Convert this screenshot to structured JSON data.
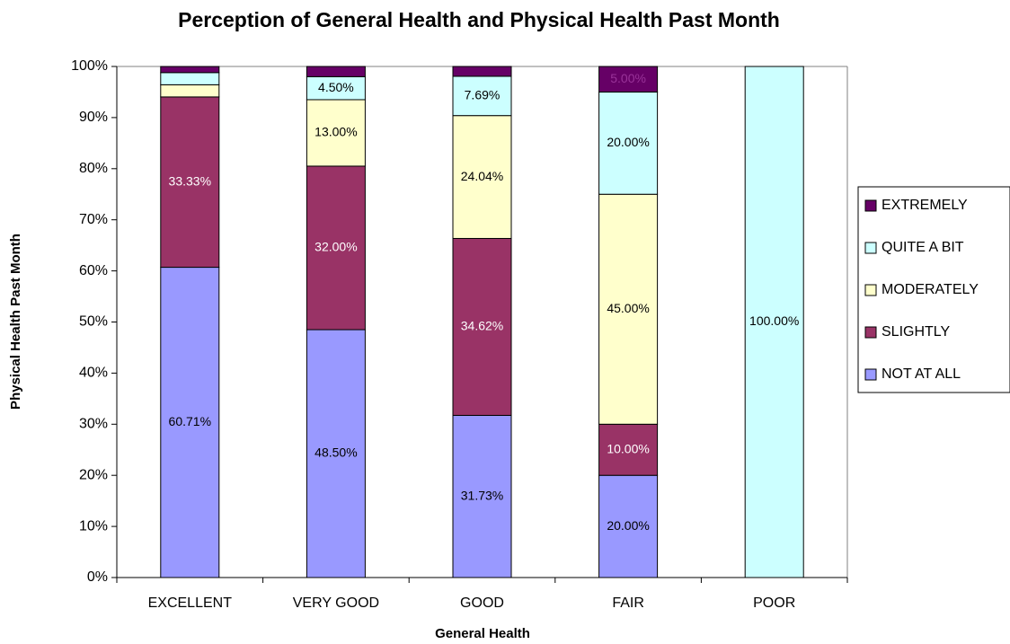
{
  "chart_data": {
    "type": "stacked_bar",
    "title": "Perception of General Health and Physical Health Past Month",
    "x_label": "General Health",
    "y_label": "Physical Health Past Month",
    "categories": [
      "EXCELLENT",
      "VERY GOOD",
      "GOOD",
      "FAIR",
      "POOR"
    ],
    "series": [
      {
        "name": "NOT AT ALL",
        "color": "#9999ff",
        "label_color": "#000000",
        "values": [
          60.71,
          48.5,
          31.73,
          20,
          0
        ],
        "value_labels": [
          "60.71%",
          "48.50%",
          "31.73%",
          "20.00%",
          null
        ]
      },
      {
        "name": "SLIGHTLY",
        "color": "#993366",
        "label_color": "#ffffff",
        "values": [
          33.33,
          32,
          34.62,
          10,
          0
        ],
        "value_labels": [
          "33.33%",
          "32.00%",
          "34.62%",
          "10.00%",
          null
        ]
      },
      {
        "name": "MODERATELY",
        "color": "#ffffcc",
        "label_color": "#000000",
        "values": [
          2.38,
          13,
          24.04,
          45,
          0
        ],
        "value_labels": [
          null,
          "13.00%",
          "24.04%",
          "45.00%",
          null
        ]
      },
      {
        "name": "QUITE A BIT",
        "color": "#ccffff",
        "label_color": "#000000",
        "values": [
          2.38,
          4.5,
          7.69,
          20,
          100
        ],
        "value_labels": [
          null,
          "4.50%",
          "7.69%",
          "20.00%",
          "100.00%"
        ]
      },
      {
        "name": "EXTREMELY",
        "color": "#660066",
        "label_color": "#993399",
        "values": [
          1.19,
          2,
          1.92,
          5,
          0
        ],
        "value_labels": [
          null,
          null,
          null,
          "5.00%",
          null
        ]
      }
    ],
    "ylim": [
      0,
      100
    ],
    "yticks": [
      {
        "value": 0,
        "label": "0%"
      },
      {
        "value": 10,
        "label": "10%"
      },
      {
        "value": 20,
        "label": "20%"
      },
      {
        "value": 30,
        "label": "30%"
      },
      {
        "value": 40,
        "label": "40%"
      },
      {
        "value": 50,
        "label": "50%"
      },
      {
        "value": 60,
        "label": "60%"
      },
      {
        "value": 70,
        "label": "70%"
      },
      {
        "value": 80,
        "label": "80%"
      },
      {
        "value": 90,
        "label": "90%"
      },
      {
        "value": 100,
        "label": "100%"
      }
    ],
    "legend_position": "right"
  }
}
